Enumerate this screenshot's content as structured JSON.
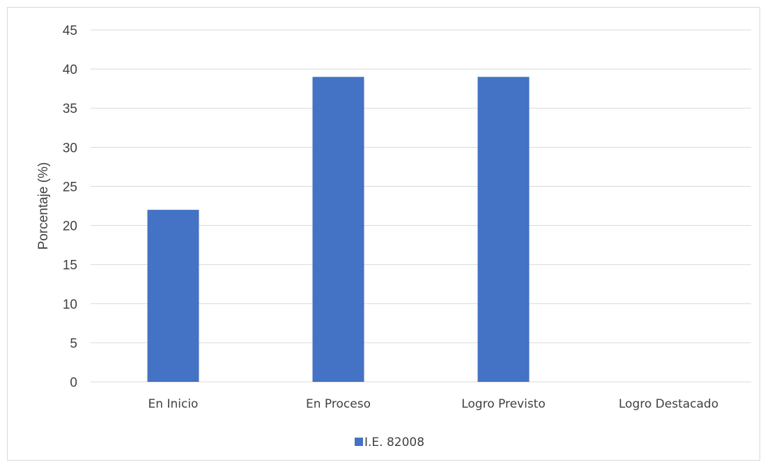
{
  "chart_data": {
    "type": "bar",
    "title": "",
    "xlabel": "",
    "ylabel": "Porcentaje (%)",
    "ylim": [
      0,
      45
    ],
    "yticks": [
      0,
      5,
      10,
      15,
      20,
      25,
      30,
      35,
      40,
      45
    ],
    "grid": true,
    "legend_position": "bottom",
    "categories": [
      "En Inicio",
      "En Proceso",
      "Logro Previsto",
      "Logro Destacado"
    ],
    "series": [
      {
        "name": "I.E. 82008",
        "color": "#4472c4",
        "values": [
          22,
          39,
          39,
          0
        ]
      }
    ]
  }
}
